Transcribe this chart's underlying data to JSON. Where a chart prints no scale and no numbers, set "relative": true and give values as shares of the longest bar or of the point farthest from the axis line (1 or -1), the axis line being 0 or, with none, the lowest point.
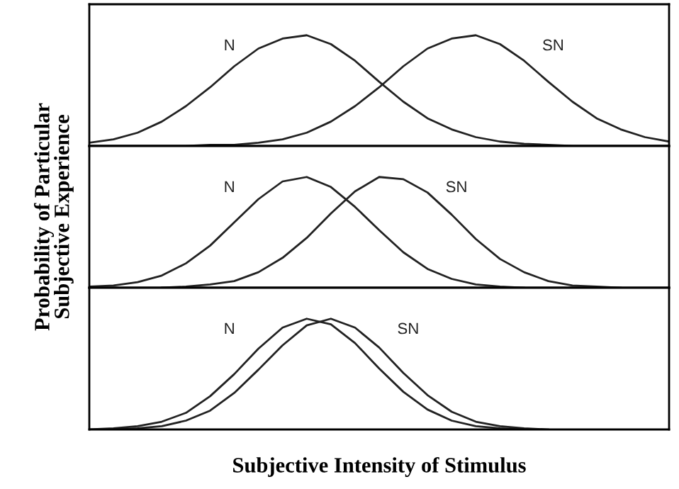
{
  "chart_data": [
    {
      "type": "line",
      "relative": true,
      "legend": false,
      "categories": [
        null,
        null,
        null,
        null,
        null,
        null,
        null,
        null,
        null,
        null,
        null,
        null,
        null,
        null,
        null,
        null,
        null,
        null,
        null,
        null,
        null,
        null,
        null,
        null,
        null
      ],
      "series": [
        {
          "name": "N",
          "color": "#222222",
          "values": [
            0.03,
            0.06,
            0.12,
            0.22,
            0.36,
            0.53,
            0.72,
            0.88,
            0.97,
            1.0,
            0.92,
            0.77,
            0.58,
            0.4,
            0.25,
            0.15,
            0.08,
            0.04,
            0.02,
            0.01,
            0,
            0,
            0,
            0,
            0
          ]
        },
        {
          "name": "SN",
          "color": "#222222",
          "values": [
            0,
            0,
            0,
            0,
            0,
            0.01,
            0.01,
            0.03,
            0.06,
            0.12,
            0.22,
            0.36,
            0.53,
            0.72,
            0.88,
            0.97,
            1.0,
            0.92,
            0.77,
            0.58,
            0.4,
            0.25,
            0.15,
            0.08,
            0.04
          ]
        }
      ]
    },
    {
      "type": "line",
      "relative": true,
      "legend": false,
      "ylabel": "Probability of Particular\nSubjective Experience",
      "categories": [
        null,
        null,
        null,
        null,
        null,
        null,
        null,
        null,
        null,
        null,
        null,
        null,
        null,
        null,
        null,
        null,
        null,
        null,
        null,
        null,
        null,
        null,
        null,
        null,
        null
      ],
      "series": [
        {
          "name": "N",
          "color": "#222222",
          "values": [
            0.01,
            0.02,
            0.05,
            0.11,
            0.22,
            0.38,
            0.59,
            0.8,
            0.96,
            1.0,
            0.91,
            0.73,
            0.52,
            0.32,
            0.17,
            0.08,
            0.03,
            0.01,
            0,
            null,
            null,
            null,
            null,
            null,
            null
          ]
        },
        {
          "name": "SN",
          "color": "#222222",
          "values": [
            null,
            null,
            null,
            0,
            0.01,
            0.03,
            0.06,
            0.14,
            0.27,
            0.45,
            0.67,
            0.87,
            1.0,
            0.98,
            0.86,
            0.66,
            0.44,
            0.26,
            0.14,
            0.06,
            0.02,
            0.01,
            0,
            null,
            null
          ]
        }
      ]
    },
    {
      "type": "line",
      "relative": true,
      "legend": false,
      "xlabel": "Subjective Intensity of Stimulus",
      "categories": [
        null,
        null,
        null,
        null,
        null,
        null,
        null,
        null,
        null,
        null,
        null,
        null,
        null,
        null,
        null,
        null,
        null,
        null,
        null,
        null,
        null,
        null,
        null,
        null,
        null
      ],
      "series": [
        {
          "name": "N",
          "color": "#222222",
          "values": [
            0,
            0.01,
            0.03,
            0.07,
            0.15,
            0.3,
            0.5,
            0.73,
            0.92,
            1.0,
            0.95,
            0.78,
            0.55,
            0.34,
            0.18,
            0.08,
            0.03,
            0.01,
            0,
            null,
            null,
            null,
            null,
            null,
            null
          ]
        },
        {
          "name": "SN",
          "color": "#222222",
          "values": [
            null,
            0,
            0.01,
            0.03,
            0.08,
            0.17,
            0.33,
            0.54,
            0.76,
            0.94,
            1.0,
            0.92,
            0.74,
            0.51,
            0.31,
            0.16,
            0.07,
            0.03,
            0.01,
            0,
            null,
            null,
            null,
            null,
            null
          ]
        }
      ]
    }
  ]
}
